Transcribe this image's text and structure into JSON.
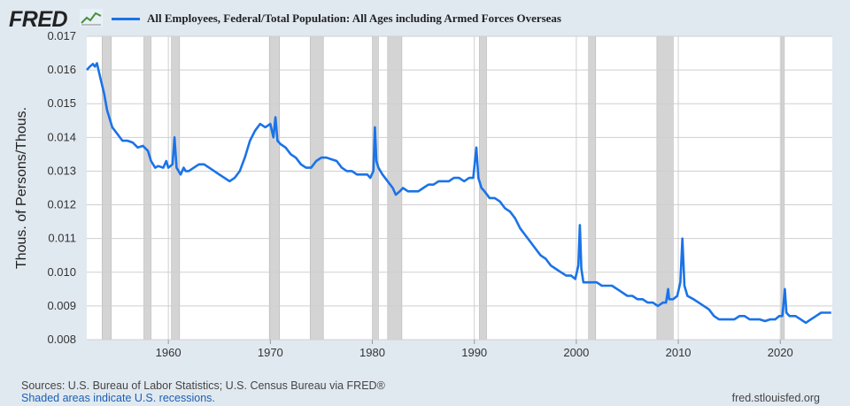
{
  "header": {
    "logo_text": "FRED",
    "logo_icon": "chart-line-icon",
    "legend_label": "All Employees, Federal/Total Population: All Ages including Armed Forces Overseas"
  },
  "footer": {
    "sources": "Sources: U.S. Bureau of Labor Statistics; U.S. Census Bureau via FRED®",
    "shaded_note": "Shaded areas indicate U.S. recessions.",
    "site": "fred.stlouisfed.org"
  },
  "colors": {
    "line": "#1a73e8",
    "plot_bg": "#ffffff",
    "page_bg": "#e1e9f0",
    "recession": "#d4d4d4",
    "grid": "#cfcfcf"
  },
  "chart_data": {
    "type": "line",
    "title": "",
    "xlabel": "",
    "ylabel": "Thous. of Persons/Thous.",
    "xlim": [
      1952,
      2025.1
    ],
    "ylim": [
      0.008,
      0.017
    ],
    "y_ticks": [
      "0.008",
      "0.009",
      "0.010",
      "0.011",
      "0.012",
      "0.013",
      "0.014",
      "0.015",
      "0.016",
      "0.017"
    ],
    "x_ticks": [
      "1960",
      "1970",
      "1980",
      "1990",
      "2000",
      "2010",
      "2020"
    ],
    "grid": true,
    "legend_position": "top",
    "recessions": [
      [
        1953.5,
        1954.4
      ],
      [
        1957.6,
        1958.3
      ],
      [
        1960.3,
        1961.1
      ],
      [
        1969.9,
        1970.9
      ],
      [
        1973.9,
        1975.2
      ],
      [
        1980.0,
        1980.6
      ],
      [
        1981.5,
        1982.9
      ],
      [
        1990.5,
        1991.2
      ],
      [
        2001.2,
        2001.9
      ],
      [
        2007.9,
        2009.5
      ],
      [
        2020.1,
        2020.4
      ]
    ],
    "series": [
      {
        "name": "All Employees, Federal/Total Population: All Ages including Armed Forces Overseas",
        "points": [
          [
            1952.0,
            0.016
          ],
          [
            1952.3,
            0.0161
          ],
          [
            1952.6,
            0.01618
          ],
          [
            1952.8,
            0.0161
          ],
          [
            1953.0,
            0.0162
          ],
          [
            1953.3,
            0.0158
          ],
          [
            1953.7,
            0.0153
          ],
          [
            1954.0,
            0.0148
          ],
          [
            1954.3,
            0.0145
          ],
          [
            1954.5,
            0.0143
          ],
          [
            1955.0,
            0.0141
          ],
          [
            1955.5,
            0.0139
          ],
          [
            1956.0,
            0.0139
          ],
          [
            1956.5,
            0.01385
          ],
          [
            1957.0,
            0.0137
          ],
          [
            1957.5,
            0.01375
          ],
          [
            1958.0,
            0.0136
          ],
          [
            1958.3,
            0.0133
          ],
          [
            1958.7,
            0.0131
          ],
          [
            1959.0,
            0.01315
          ],
          [
            1959.5,
            0.0131
          ],
          [
            1959.8,
            0.0133
          ],
          [
            1960.0,
            0.0131
          ],
          [
            1960.4,
            0.0132
          ],
          [
            1960.6,
            0.014
          ],
          [
            1960.8,
            0.0131
          ],
          [
            1961.2,
            0.0129
          ],
          [
            1961.5,
            0.0131
          ],
          [
            1961.7,
            0.013
          ],
          [
            1962.0,
            0.013
          ],
          [
            1962.5,
            0.0131
          ],
          [
            1963.0,
            0.0132
          ],
          [
            1963.5,
            0.0132
          ],
          [
            1964.0,
            0.0131
          ],
          [
            1964.5,
            0.013
          ],
          [
            1965.0,
            0.0129
          ],
          [
            1965.5,
            0.0128
          ],
          [
            1966.0,
            0.0127
          ],
          [
            1966.5,
            0.0128
          ],
          [
            1967.0,
            0.013
          ],
          [
            1967.5,
            0.0134
          ],
          [
            1968.0,
            0.0139
          ],
          [
            1968.5,
            0.0142
          ],
          [
            1969.0,
            0.0144
          ],
          [
            1969.5,
            0.0143
          ],
          [
            1970.0,
            0.0144
          ],
          [
            1970.3,
            0.014
          ],
          [
            1970.5,
            0.0146
          ],
          [
            1970.7,
            0.0139
          ],
          [
            1971.0,
            0.0138
          ],
          [
            1971.5,
            0.0137
          ],
          [
            1972.0,
            0.0135
          ],
          [
            1972.5,
            0.0134
          ],
          [
            1973.0,
            0.0132
          ],
          [
            1973.5,
            0.0131
          ],
          [
            1974.0,
            0.0131
          ],
          [
            1974.5,
            0.0133
          ],
          [
            1975.0,
            0.0134
          ],
          [
            1975.5,
            0.0134
          ],
          [
            1976.0,
            0.01335
          ],
          [
            1976.5,
            0.0133
          ],
          [
            1977.0,
            0.0131
          ],
          [
            1977.5,
            0.013
          ],
          [
            1978.0,
            0.013
          ],
          [
            1978.5,
            0.0129
          ],
          [
            1979.0,
            0.0129
          ],
          [
            1979.5,
            0.0129
          ],
          [
            1979.8,
            0.0128
          ],
          [
            1980.1,
            0.013
          ],
          [
            1980.25,
            0.0143
          ],
          [
            1980.4,
            0.0133
          ],
          [
            1980.6,
            0.0131
          ],
          [
            1981.0,
            0.0129
          ],
          [
            1981.5,
            0.0127
          ],
          [
            1982.0,
            0.0125
          ],
          [
            1982.3,
            0.0123
          ],
          [
            1982.7,
            0.0124
          ],
          [
            1983.0,
            0.0125
          ],
          [
            1983.5,
            0.0124
          ],
          [
            1984.0,
            0.0124
          ],
          [
            1984.5,
            0.0124
          ],
          [
            1985.0,
            0.0125
          ],
          [
            1985.5,
            0.0126
          ],
          [
            1986.0,
            0.0126
          ],
          [
            1986.5,
            0.0127
          ],
          [
            1987.0,
            0.0127
          ],
          [
            1987.5,
            0.0127
          ],
          [
            1988.0,
            0.0128
          ],
          [
            1988.5,
            0.0128
          ],
          [
            1989.0,
            0.0127
          ],
          [
            1989.5,
            0.0128
          ],
          [
            1989.9,
            0.0128
          ],
          [
            1990.2,
            0.0137
          ],
          [
            1990.4,
            0.0128
          ],
          [
            1990.7,
            0.0125
          ],
          [
            1991.0,
            0.0124
          ],
          [
            1991.5,
            0.0122
          ],
          [
            1992.0,
            0.0122
          ],
          [
            1992.5,
            0.0121
          ],
          [
            1993.0,
            0.0119
          ],
          [
            1993.5,
            0.0118
          ],
          [
            1994.0,
            0.0116
          ],
          [
            1994.5,
            0.0113
          ],
          [
            1995.0,
            0.0111
          ],
          [
            1995.5,
            0.0109
          ],
          [
            1996.0,
            0.0107
          ],
          [
            1996.5,
            0.0105
          ],
          [
            1997.0,
            0.0104
          ],
          [
            1997.5,
            0.0102
          ],
          [
            1998.0,
            0.0101
          ],
          [
            1998.5,
            0.01
          ],
          [
            1999.0,
            0.0099
          ],
          [
            1999.5,
            0.0099
          ],
          [
            1999.9,
            0.0098
          ],
          [
            2000.2,
            0.0102
          ],
          [
            2000.35,
            0.0114
          ],
          [
            2000.5,
            0.0101
          ],
          [
            2000.7,
            0.0097
          ],
          [
            2001.0,
            0.0097
          ],
          [
            2001.5,
            0.0097
          ],
          [
            2002.0,
            0.0097
          ],
          [
            2002.5,
            0.0096
          ],
          [
            2003.0,
            0.0096
          ],
          [
            2003.5,
            0.0096
          ],
          [
            2004.0,
            0.0095
          ],
          [
            2004.5,
            0.0094
          ],
          [
            2005.0,
            0.0093
          ],
          [
            2005.5,
            0.0093
          ],
          [
            2006.0,
            0.0092
          ],
          [
            2006.5,
            0.0092
          ],
          [
            2007.0,
            0.0091
          ],
          [
            2007.5,
            0.0091
          ],
          [
            2008.0,
            0.009
          ],
          [
            2008.5,
            0.0091
          ],
          [
            2008.8,
            0.0091
          ],
          [
            2009.0,
            0.0095
          ],
          [
            2009.1,
            0.0092
          ],
          [
            2009.5,
            0.0092
          ],
          [
            2009.9,
            0.0093
          ],
          [
            2010.2,
            0.0097
          ],
          [
            2010.4,
            0.011
          ],
          [
            2010.6,
            0.0096
          ],
          [
            2010.9,
            0.0093
          ],
          [
            2011.5,
            0.0092
          ],
          [
            2012.0,
            0.0091
          ],
          [
            2012.5,
            0.009
          ],
          [
            2013.0,
            0.0089
          ],
          [
            2013.5,
            0.0087
          ],
          [
            2014.0,
            0.0086
          ],
          [
            2014.5,
            0.0086
          ],
          [
            2015.0,
            0.0086
          ],
          [
            2015.5,
            0.0086
          ],
          [
            2016.0,
            0.0087
          ],
          [
            2016.5,
            0.0087
          ],
          [
            2017.0,
            0.0086
          ],
          [
            2017.5,
            0.0086
          ],
          [
            2018.0,
            0.0086
          ],
          [
            2018.5,
            0.00855
          ],
          [
            2019.0,
            0.0086
          ],
          [
            2019.5,
            0.0086
          ],
          [
            2019.9,
            0.0087
          ],
          [
            2020.2,
            0.0087
          ],
          [
            2020.45,
            0.0095
          ],
          [
            2020.6,
            0.0088
          ],
          [
            2020.9,
            0.0087
          ],
          [
            2021.5,
            0.0087
          ],
          [
            2022.0,
            0.0086
          ],
          [
            2022.5,
            0.0085
          ],
          [
            2023.0,
            0.0086
          ],
          [
            2023.5,
            0.0087
          ],
          [
            2024.0,
            0.0088
          ],
          [
            2024.5,
            0.0088
          ],
          [
            2025.0,
            0.0088
          ]
        ]
      }
    ]
  }
}
